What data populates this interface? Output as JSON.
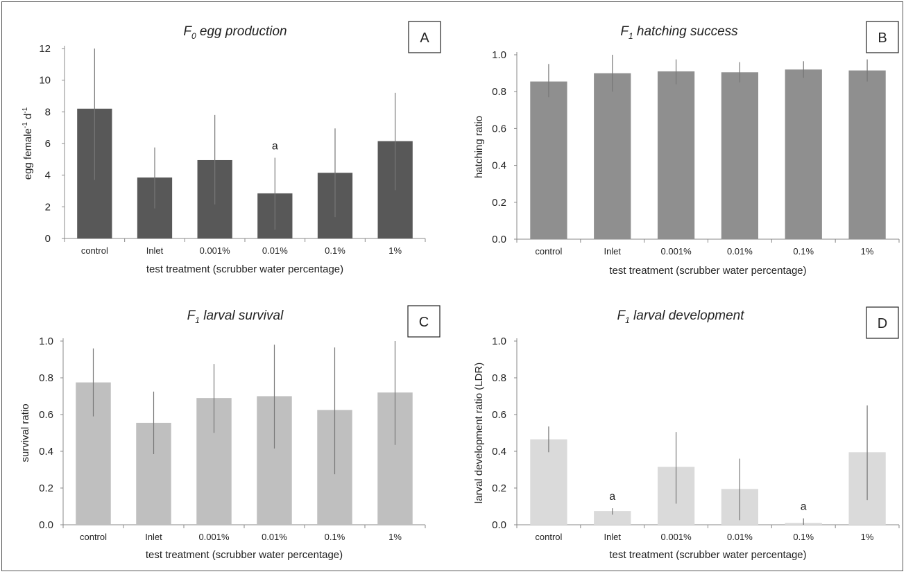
{
  "colors": {
    "A": "#585858",
    "B": "#8f8f8f",
    "C": "#bfbfbf",
    "D": "#dadada",
    "error_bar": "#777777",
    "axis": "#888888"
  },
  "chart_data": [
    {
      "panel": "A",
      "type": "bar",
      "title_main": "F",
      "title_sub": "0",
      "title_rest": " egg production",
      "ylabel_main": "egg female",
      "ylabel_sup1": "-1",
      "ylabel_mid": " d",
      "ylabel_sup2": "-1",
      "xlabel": "test treatment (scrubber water percentage)",
      "categories": [
        "control",
        "Inlet",
        "0.001%",
        "0.01%",
        "0.1%",
        "1%"
      ],
      "values": [
        8.2,
        3.85,
        4.95,
        2.85,
        4.15,
        6.15
      ],
      "err_low": [
        3.7,
        1.9,
        2.15,
        0.55,
        1.35,
        3.05
      ],
      "err_high": [
        12.0,
        5.75,
        7.8,
        5.1,
        6.95,
        9.2
      ],
      "annotations": [
        "",
        "",
        "",
        "a",
        "",
        ""
      ],
      "ylim": [
        0,
        12
      ],
      "yticks": [
        "0",
        "2",
        "4",
        "6",
        "8",
        "10",
        "12"
      ]
    },
    {
      "panel": "B",
      "type": "bar",
      "title_main": "F",
      "title_sub": "1",
      "title_rest": " hatching success",
      "ylabel_main": "hatching ratio",
      "xlabel": "test treatment (scrubber water percentage)",
      "categories": [
        "control",
        "Inlet",
        "0.001%",
        "0.01%",
        "0.1%",
        "1%"
      ],
      "values": [
        0.855,
        0.9,
        0.91,
        0.905,
        0.92,
        0.915
      ],
      "err_low": [
        0.77,
        0.8,
        0.84,
        0.85,
        0.875,
        0.855
      ],
      "err_high": [
        0.95,
        1.0,
        0.975,
        0.96,
        0.965,
        0.975
      ],
      "annotations": [
        "",
        "",
        "",
        "",
        "",
        ""
      ],
      "ylim": [
        0,
        1.0
      ],
      "yticks": [
        "0.0",
        "0.2",
        "0.4",
        "0.6",
        "0.8",
        "1.0"
      ]
    },
    {
      "panel": "C",
      "type": "bar",
      "title_main": "F",
      "title_sub": "1",
      "title_rest": " larval survival",
      "ylabel_main": "survival ratio",
      "xlabel": "test treatment (scrubber water percentage)",
      "categories": [
        "control",
        "Inlet",
        "0.001%",
        "0.01%",
        "0.1%",
        "1%"
      ],
      "values": [
        0.775,
        0.555,
        0.69,
        0.7,
        0.625,
        0.72
      ],
      "err_low": [
        0.59,
        0.385,
        0.5,
        0.415,
        0.275,
        0.435
      ],
      "err_high": [
        0.96,
        0.725,
        0.875,
        0.98,
        0.965,
        1.0
      ],
      "annotations": [
        "",
        "",
        "",
        "",
        "",
        ""
      ],
      "ylim": [
        0,
        1.0
      ],
      "yticks": [
        "0.0",
        "0.2",
        "0.4",
        "0.6",
        "0.8",
        "1.0"
      ]
    },
    {
      "panel": "D",
      "type": "bar",
      "title_main": "F",
      "title_sub": "1",
      "title_rest": " larval development",
      "ylabel_main": "larval development ratio (LDR)",
      "xlabel": "test treatment (scrubber water percentage)",
      "categories": [
        "control",
        "Inlet",
        "0.001%",
        "0.01%",
        "0.1%",
        "1%"
      ],
      "values": [
        0.465,
        0.075,
        0.315,
        0.195,
        0.01,
        0.395
      ],
      "err_low": [
        0.395,
        0.055,
        0.115,
        0.025,
        0.0,
        0.135
      ],
      "err_high": [
        0.535,
        0.09,
        0.505,
        0.36,
        0.035,
        0.65
      ],
      "annotations": [
        "",
        "a",
        "",
        "",
        "a",
        ""
      ],
      "ylim": [
        0,
        1.0
      ],
      "yticks": [
        "0.0",
        "0.2",
        "0.4",
        "0.6",
        "0.8",
        "1.0"
      ]
    }
  ]
}
